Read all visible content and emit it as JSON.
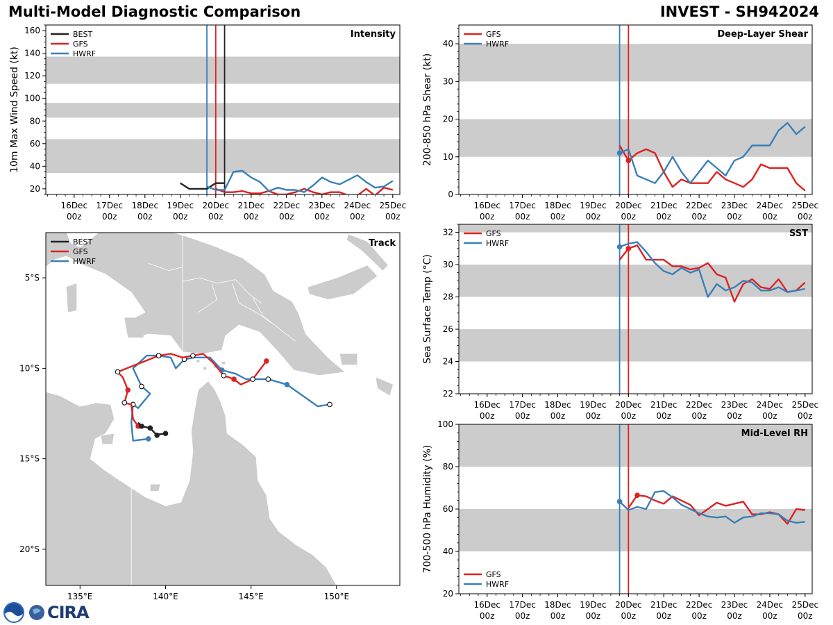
{
  "header": {
    "title": "Multi-Model Diagnostic Comparison",
    "storm": "INVEST - SH942024"
  },
  "colors": {
    "BEST": "#222222",
    "GFS": "#dd2222",
    "HWRF": "#3a7fb8",
    "band": "#cccccc",
    "land": "#cccccc",
    "border": "#ffffff"
  },
  "logo": {
    "text": "CIRA"
  },
  "chart_data": [
    {
      "id": "intensity",
      "type": "line",
      "title": "Intensity",
      "ylabel": "10m Max Wind Speed (kt)",
      "xlim": [
        0,
        10
      ],
      "ylim": [
        15,
        165
      ],
      "yticks": [
        20,
        40,
        60,
        80,
        100,
        120,
        140,
        160
      ],
      "yminor": 5,
      "xtick_days": [
        "16Dec",
        "17Dec",
        "18Dec",
        "19Dec",
        "20Dec",
        "21Dec",
        "22Dec",
        "23Dec",
        "24Dec",
        "25Dec"
      ],
      "xtick_hour": "00z",
      "xticks": [
        0.8,
        1.8,
        2.8,
        3.8,
        4.8,
        5.8,
        6.8,
        7.8,
        8.8,
        9.8
      ],
      "bands": [
        [
          34,
          64
        ],
        [
          83,
          96
        ],
        [
          113,
          137
        ]
      ],
      "vlines": [
        {
          "x": 4.55,
          "model": "HWRF"
        },
        {
          "x": 4.8,
          "model": "GFS"
        },
        {
          "x": 5.05,
          "model": "BEST"
        }
      ],
      "legend": [
        "BEST",
        "GFS",
        "HWRF"
      ],
      "series": [
        {
          "name": "BEST",
          "x": [
            3.8,
            4.05,
            4.3,
            4.55,
            4.8,
            5.05
          ],
          "y": [
            25,
            20,
            20,
            20,
            25,
            25
          ]
        },
        {
          "name": "GFS",
          "x": [
            4.8,
            5.05,
            5.3,
            5.55,
            5.8,
            6.05,
            6.3,
            6.55,
            6.8,
            7.05,
            7.3,
            7.55,
            7.8,
            8.05,
            8.3,
            8.55,
            8.8,
            9.05,
            9.3,
            9.55,
            9.8
          ],
          "y": [
            20,
            17,
            17,
            18,
            16,
            16,
            18,
            15,
            15,
            17,
            20,
            17,
            15,
            17,
            17,
            14,
            14,
            20,
            14,
            21,
            19
          ]
        },
        {
          "name": "HWRF",
          "x": [
            4.55,
            4.8,
            5.05,
            5.3,
            5.55,
            5.8,
            6.05,
            6.3,
            6.55,
            6.8,
            7.05,
            7.3,
            7.55,
            7.8,
            8.05,
            8.3,
            8.55,
            8.8,
            9.05,
            9.3,
            9.55,
            9.8
          ],
          "y": [
            22,
            19,
            19,
            35,
            36,
            30,
            26,
            18,
            21,
            19,
            19,
            17,
            23,
            30,
            26,
            24,
            28,
            32,
            26,
            21,
            22,
            27
          ]
        }
      ]
    },
    {
      "id": "shear",
      "type": "line",
      "title": "Deep-Layer Shear",
      "ylabel": "200-850 hPa Shear (kt)",
      "xlim": [
        0,
        10
      ],
      "ylim": [
        0,
        45
      ],
      "yticks": [
        0,
        10,
        20,
        30,
        40
      ],
      "yminor": 2,
      "xtick_days": [
        "16Dec",
        "17Dec",
        "18Dec",
        "19Dec",
        "20Dec",
        "21Dec",
        "22Dec",
        "23Dec",
        "24Dec",
        "25Dec"
      ],
      "xtick_hour": "00z",
      "xticks": [
        0.8,
        1.8,
        2.8,
        3.8,
        4.8,
        5.8,
        6.8,
        7.8,
        8.8,
        9.8
      ],
      "bands": [
        [
          10,
          20
        ],
        [
          30,
          40
        ]
      ],
      "vlines": [
        {
          "x": 4.55,
          "model": "HWRF"
        },
        {
          "x": 4.8,
          "model": "GFS"
        }
      ],
      "legend": [
        "GFS",
        "HWRF"
      ],
      "series": [
        {
          "name": "GFS",
          "x": [
            4.55,
            4.8,
            5.05,
            5.3,
            5.55,
            5.8,
            6.05,
            6.3,
            6.55,
            6.8,
            7.05,
            7.3,
            7.55,
            7.8,
            8.05,
            8.3,
            8.55,
            8.8,
            9.05,
            9.3,
            9.55,
            9.8
          ],
          "y": [
            13,
            9,
            11,
            12,
            11,
            6,
            2,
            4,
            3,
            3,
            3,
            6,
            4,
            3,
            2,
            4,
            8,
            7,
            7,
            7,
            3,
            1
          ],
          "start_marker": 1
        },
        {
          "name": "HWRF",
          "x": [
            4.55,
            4.8,
            5.05,
            5.3,
            5.55,
            5.8,
            6.05,
            6.3,
            6.55,
            6.8,
            7.05,
            7.3,
            7.55,
            7.8,
            8.05,
            8.3,
            8.55,
            8.8,
            9.05,
            9.3,
            9.55,
            9.8
          ],
          "y": [
            11,
            12,
            5,
            4,
            3,
            6,
            10,
            6,
            3,
            6,
            9,
            7,
            5,
            9,
            10,
            13,
            13,
            13,
            17,
            19,
            16,
            18
          ],
          "start_marker": 0
        }
      ]
    },
    {
      "id": "sst",
      "type": "line",
      "title": "SST",
      "ylabel": "Sea Surface Temp (°C)",
      "xlim": [
        0,
        10
      ],
      "ylim": [
        22,
        32.5
      ],
      "yticks": [
        22,
        24,
        26,
        28,
        30,
        32
      ],
      "yminor": 0.5,
      "xtick_days": [
        "16Dec",
        "17Dec",
        "18Dec",
        "19Dec",
        "20Dec",
        "21Dec",
        "22Dec",
        "23Dec",
        "24Dec",
        "25Dec"
      ],
      "xtick_hour": "00z",
      "xticks": [
        0.8,
        1.8,
        2.8,
        3.8,
        4.8,
        5.8,
        6.8,
        7.8,
        8.8,
        9.8
      ],
      "bands": [
        [
          24,
          26
        ],
        [
          28,
          30
        ],
        [
          32,
          32.5
        ]
      ],
      "vlines": [
        {
          "x": 4.55,
          "model": "HWRF"
        },
        {
          "x": 4.8,
          "model": "GFS"
        }
      ],
      "legend": [
        "GFS",
        "HWRF"
      ],
      "series": [
        {
          "name": "GFS",
          "x": [
            4.55,
            4.8,
            5.05,
            5.3,
            5.55,
            5.8,
            6.05,
            6.3,
            6.55,
            6.8,
            7.05,
            7.3,
            7.55,
            7.8,
            8.05,
            8.3,
            8.55,
            8.8,
            9.05,
            9.3,
            9.55,
            9.8
          ],
          "y": [
            30.3,
            31.0,
            31.2,
            30.3,
            30.3,
            30.3,
            29.9,
            29.9,
            29.7,
            29.8,
            30.1,
            29.4,
            29.2,
            27.7,
            28.8,
            29.1,
            28.6,
            28.5,
            29.1,
            28.3,
            28.4,
            28.9
          ],
          "start_marker": 1
        },
        {
          "name": "HWRF",
          "x": [
            4.55,
            4.8,
            5.05,
            5.3,
            5.55,
            5.8,
            6.05,
            6.3,
            6.55,
            6.8,
            7.05,
            7.3,
            7.55,
            7.8,
            8.05,
            8.3,
            8.55,
            8.8,
            9.05,
            9.3,
            9.55,
            9.8
          ],
          "y": [
            31.1,
            31.3,
            31.4,
            30.8,
            30.1,
            29.6,
            29.4,
            29.8,
            29.5,
            29.7,
            28.0,
            28.8,
            28.4,
            28.6,
            29.0,
            28.9,
            28.4,
            28.4,
            28.6,
            28.3,
            28.4,
            28.5
          ],
          "start_marker": 0
        }
      ]
    },
    {
      "id": "rh",
      "type": "line",
      "title": "Mid-Level RH",
      "ylabel": "700-500 hPa Humidity (%)",
      "xlim": [
        0,
        10
      ],
      "ylim": [
        20,
        100
      ],
      "yticks": [
        20,
        40,
        60,
        80,
        100
      ],
      "yminor": 4,
      "xtick_days": [
        "16Dec",
        "17Dec",
        "18Dec",
        "19Dec",
        "20Dec",
        "21Dec",
        "22Dec",
        "23Dec",
        "24Dec",
        "25Dec"
      ],
      "xtick_hour": "00z",
      "xticks": [
        0.8,
        1.8,
        2.8,
        3.8,
        4.8,
        5.8,
        6.8,
        7.8,
        8.8,
        9.8
      ],
      "bands": [
        [
          40,
          60
        ],
        [
          80,
          100
        ]
      ],
      "vlines": [
        {
          "x": 4.55,
          "model": "HWRF"
        },
        {
          "x": 4.8,
          "model": "GFS"
        }
      ],
      "legend": [
        "GFS",
        "HWRF"
      ],
      "legend_pos": "bottom-left",
      "series": [
        {
          "name": "GFS",
          "x": [
            4.8,
            5.05,
            5.3,
            5.55,
            5.8,
            6.05,
            6.3,
            6.55,
            6.8,
            7.05,
            7.3,
            7.55,
            7.8,
            8.05,
            8.3,
            8.55,
            8.8,
            9.05,
            9.3,
            9.55,
            9.8
          ],
          "y": [
            60.5,
            66.5,
            66,
            64,
            62.5,
            66,
            64,
            62,
            57,
            60,
            63,
            61.5,
            62.5,
            63.5,
            57.5,
            57.5,
            58.5,
            57.5,
            53,
            60,
            59.5
          ],
          "start_marker": 1
        },
        {
          "name": "HWRF",
          "x": [
            4.55,
            4.8,
            5.05,
            5.3,
            5.55,
            5.8,
            6.05,
            6.3,
            6.55,
            6.8,
            7.05,
            7.3,
            7.55,
            7.8,
            8.05,
            8.3,
            8.55,
            8.8,
            9.05,
            9.3,
            9.55,
            9.8
          ],
          "y": [
            63.5,
            59.5,
            61,
            60,
            68,
            68.5,
            65.5,
            62,
            60,
            58,
            56.5,
            56,
            56.5,
            53.5,
            56,
            56.5,
            58,
            58,
            57.5,
            54.5,
            53.5,
            54
          ],
          "start_marker": 0
        }
      ]
    },
    {
      "id": "track",
      "type": "scatter",
      "title": "Track",
      "xlim": [
        133,
        153.7
      ],
      "ylim": [
        -22,
        -2.5
      ],
      "xticks": [
        135,
        140,
        145,
        150
      ],
      "xtick_labels": [
        "135°E",
        "140°E",
        "145°E",
        "150°E"
      ],
      "yticks": [
        -5,
        -10,
        -15,
        -20
      ],
      "ytick_labels": [
        "5°S",
        "10°S",
        "15°S",
        "20°S"
      ],
      "legend": [
        "BEST",
        "GFS",
        "HWRF"
      ],
      "series": [
        {
          "name": "BEST",
          "lon": [
            140.0,
            139.6,
            139.5,
            139.1,
            138.6,
            138.4
          ],
          "lat": [
            -13.6,
            -13.65,
            -13.7,
            -13.3,
            -13.2,
            -13.0
          ],
          "filled": [
            1,
            0,
            1,
            1,
            1,
            0
          ]
        },
        {
          "name": "GFS",
          "lon": [
            138.4,
            138.1,
            138.0,
            137.6,
            137.8,
            137.5,
            137.2,
            138.0,
            138.8,
            139.6,
            140.3,
            141.0,
            141.6,
            142.2,
            142.8,
            143.4,
            144.0,
            144.4,
            145.1,
            145.9
          ],
          "lat": [
            -13.2,
            -12.8,
            -12.0,
            -11.9,
            -11.2,
            -10.5,
            -10.2,
            -9.9,
            -9.6,
            -9.3,
            -9.2,
            -9.4,
            -9.3,
            -9.2,
            -9.7,
            -10.4,
            -10.6,
            -10.9,
            -10.6,
            -9.6
          ],
          "filled": [
            1,
            0,
            0,
            0,
            1,
            0,
            0,
            0,
            0,
            0,
            0,
            0,
            0,
            0,
            0,
            0,
            1,
            0,
            0,
            1
          ]
        },
        {
          "name": "HWRF",
          "lon": [
            139.0,
            138.1,
            138.0,
            138.1,
            138.4,
            139.1,
            138.6,
            138.1,
            138.9,
            139.6,
            140.3,
            140.6,
            141.1,
            141.7,
            142.6,
            143.3,
            144.1,
            144.7,
            146.0,
            147.1,
            148.9,
            149.6
          ],
          "lat": [
            -13.9,
            -14.0,
            -13.0,
            -12.0,
            -12.2,
            -11.4,
            -11.0,
            -10.0,
            -9.3,
            -9.3,
            -9.4,
            -10.0,
            -9.5,
            -9.4,
            -9.4,
            -10.1,
            -10.3,
            -10.6,
            -10.6,
            -10.9,
            -12.1,
            -12.0
          ],
          "filled": [
            1,
            0,
            0,
            0,
            0,
            0,
            0,
            0,
            0,
            0,
            0,
            0,
            0,
            0,
            0,
            1,
            0,
            0,
            0,
            1,
            0,
            0
          ]
        }
      ]
    }
  ]
}
